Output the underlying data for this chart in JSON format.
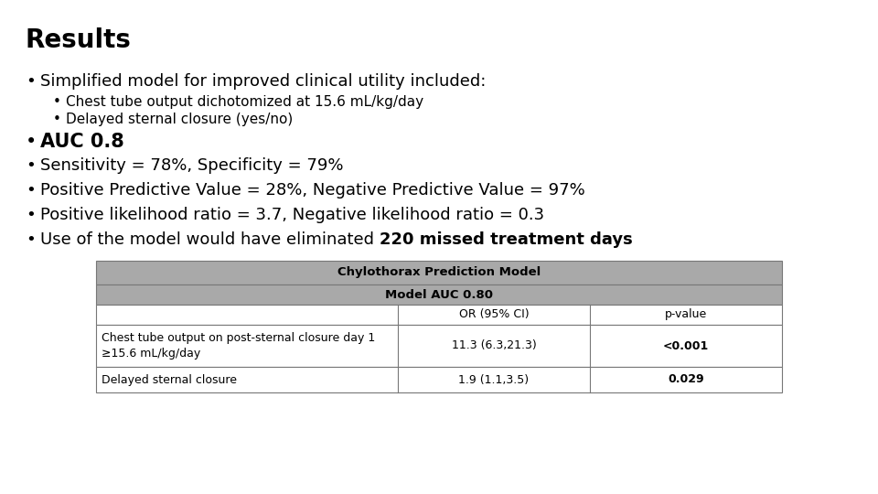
{
  "title": "Results",
  "title_fontsize": 20,
  "title_fontweight": "bold",
  "background_color": "#ffffff",
  "text_color": "#000000",
  "bullet1": "Simplified model for improved clinical utility included:",
  "sub_bullet1": "Chest tube output dichotomized at 15.6 mL/kg/day",
  "sub_bullet2": "Delayed sternal closure (yes/no)",
  "bullets": [
    {
      "text": "AUC 0.8",
      "bold": true
    },
    {
      "text": "Sensitivity = 78%, Specificity = 79%",
      "bold": false
    },
    {
      "text": "Positive Predictive Value = 28%, Negative Predictive Value = 97%",
      "bold": false
    },
    {
      "text": "Positive likelihood ratio = 3.7, Negative likelihood ratio = 0.3",
      "bold": false
    },
    {
      "text_parts": [
        {
          "text": "Use of the model would have eliminated ",
          "bold": false
        },
        {
          "text": "220 missed treatment days",
          "bold": true
        }
      ]
    }
  ],
  "table_header1": "Chylothorax Prediction Model",
  "table_header2": "Model AUC 0.80",
  "table_col_headers": [
    "",
    "OR (95% CI)",
    "p-value"
  ],
  "table_rows": [
    {
      "label": "Chest tube output on post-sternal closure day 1\n≥15.6 mL/kg/day",
      "or": "11.3 (6.3,21.3)",
      "pvalue": "<0.001",
      "pvalue_bold": true
    },
    {
      "label": "Delayed sternal closure",
      "or": "1.9 (1.1,3.5)",
      "pvalue": "0.029",
      "pvalue_bold": true
    }
  ],
  "table_header_bg": "#a9a9a9",
  "table_row_bg": "#ffffff",
  "table_border_color": "#777777",
  "font_main": 13,
  "font_sub": 11,
  "font_auc": 15
}
